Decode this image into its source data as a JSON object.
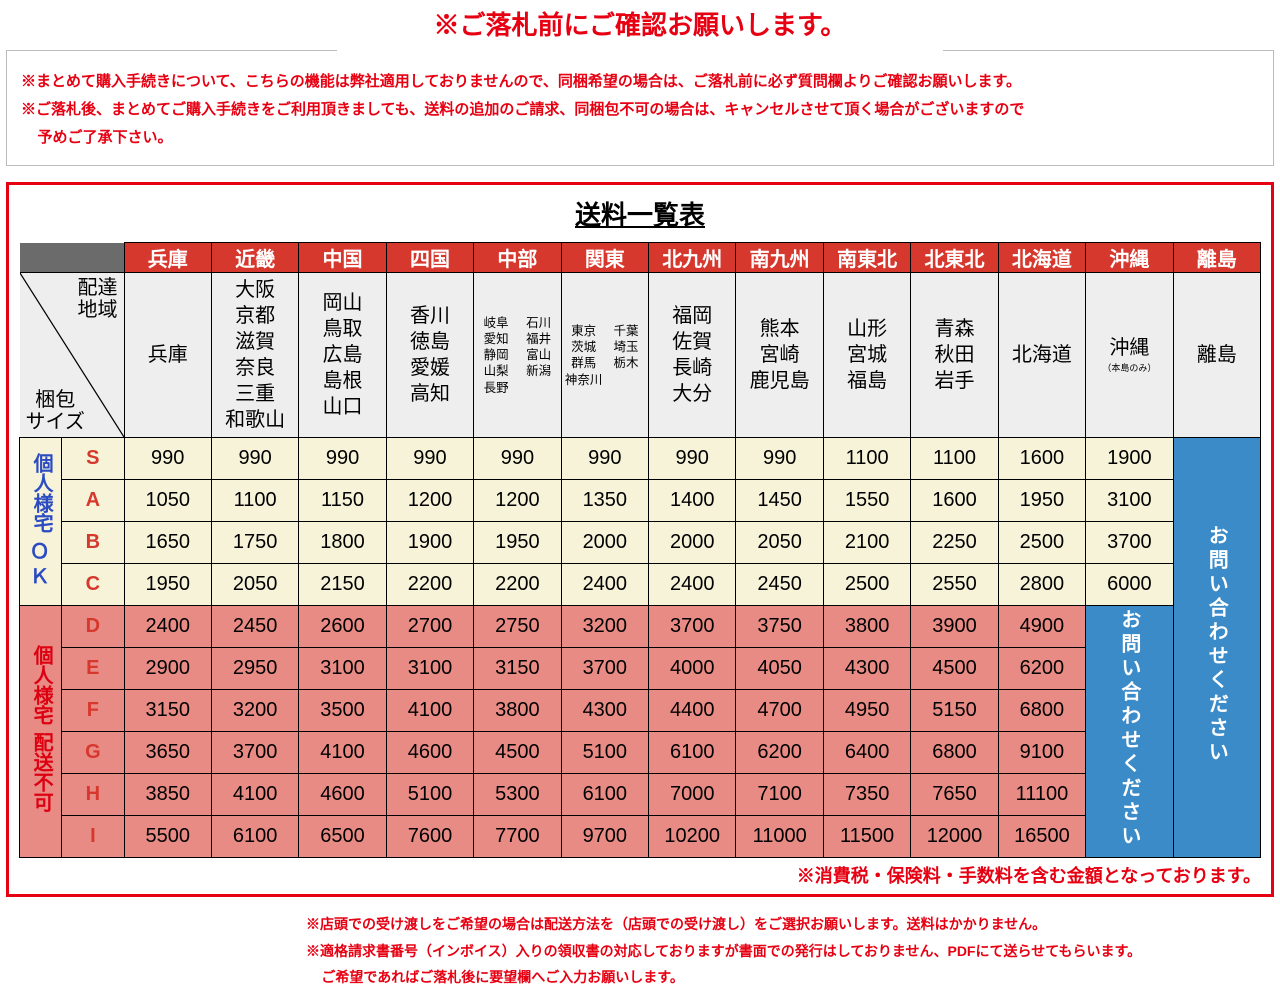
{
  "notice": {
    "title": "※ご落札前にご確認お願いします。",
    "line1": "※まとめて購入手続きについて、こちらの機能は弊社適用しておりませんので、同梱希望の場合は、ご落札前に必ず質問欄よりご確認お願いします。",
    "line2": "※ご落札後、まとめてご購入手続きをご利用頂きましても、送料の追加のご請求、同梱包不可の場合は、キャンセルさせて頂く場合がございますので",
    "line2b": "予めご了承下さい。"
  },
  "table_title": "送料一覧表",
  "diag": {
    "top": "配達\n地域",
    "bottom": "梱包\nサイズ"
  },
  "regions": [
    "兵庫",
    "近畿",
    "中国",
    "四国",
    "中部",
    "関東",
    "北九州",
    "南九州",
    "南東北",
    "北東北",
    "北海道",
    "沖縄",
    "離島"
  ],
  "prefs": {
    "r0": "兵庫",
    "r1": "大阪\n京都\n滋賀\n奈良\n三重\n和歌山",
    "r2": "岡山\n鳥取\n広島\n島根\n山口",
    "r3": "香川\n徳島\n愛媛\n高知",
    "r4a": "岐阜\n愛知\n静岡\n山梨\n長野",
    "r4b": "石川\n福井\n富山\n新潟",
    "r5a": "東京\n茨城\n群馬\n神奈川",
    "r5b": "千葉\n埼玉\n栃木",
    "r6": "福岡\n佐賀\n長崎\n大分",
    "r7": "熊本\n宮崎\n鹿児島",
    "r8": "山形\n宮城\n福島",
    "r9": "青森\n秋田\n岩手",
    "r10": "北海道",
    "r11": "沖縄",
    "r11_sub": "（本島のみ）",
    "r12": "離島"
  },
  "side": {
    "ok_v": "個人様宅",
    "ok_h": "ＯＫ",
    "ng_v1": "個人様宅",
    "ng_v2": "配送不可"
  },
  "sizes_ok": [
    "S",
    "A",
    "B",
    "C"
  ],
  "sizes_ng": [
    "D",
    "E",
    "F",
    "G",
    "H",
    "I"
  ],
  "rates_ok": {
    "S": [
      990,
      990,
      990,
      990,
      990,
      990,
      990,
      990,
      1100,
      1100,
      1600,
      1900
    ],
    "A": [
      1050,
      1100,
      1150,
      1200,
      1200,
      1350,
      1400,
      1450,
      1550,
      1600,
      1950,
      3100
    ],
    "B": [
      1650,
      1750,
      1800,
      1900,
      1950,
      2000,
      2000,
      2050,
      2100,
      2250,
      2500,
      3700
    ],
    "C": [
      1950,
      2050,
      2150,
      2200,
      2200,
      2400,
      2400,
      2450,
      2500,
      2550,
      2800,
      6000
    ]
  },
  "rates_ng": {
    "D": [
      2400,
      2450,
      2600,
      2700,
      2750,
      3200,
      3700,
      3750,
      3800,
      3900,
      4900
    ],
    "E": [
      2900,
      2950,
      3100,
      3100,
      3150,
      3700,
      4000,
      4050,
      4300,
      4500,
      6200
    ],
    "F": [
      3150,
      3200,
      3500,
      4100,
      3800,
      4300,
      4400,
      4700,
      4950,
      5150,
      6800
    ],
    "G": [
      3650,
      3700,
      4100,
      4600,
      4500,
      5100,
      6100,
      6200,
      6400,
      6800,
      9100
    ],
    "H": [
      3850,
      4100,
      4600,
      5100,
      5300,
      6100,
      7000,
      7100,
      7350,
      7650,
      11100
    ],
    "I": [
      5500,
      6100,
      6500,
      7600,
      7700,
      9700,
      10200,
      11000,
      11500,
      12000,
      16500
    ]
  },
  "contact_text": "お問い合わせください",
  "footnote": "※消費税・保険料・手数料を含む金額となっております。",
  "bottom": {
    "b1": "※店頭での受け渡しをご希望の場合は配送方法を（店頭での受け渡し）をご選択お願いします。送料はかかりません。",
    "b2": "※適格請求書番号（インボイス）入りの領収書の対応しておりますが書面での発行はしておりません、PDFにて送らせてもらいます。",
    "b3": "ご希望であればご落札後に要望欄へご入力お願いします。"
  },
  "colors": {
    "accent": "#e60012",
    "header_bg": "#d7382e",
    "ok_bg": "#f6f3d9",
    "ng_bg": "#e98b85",
    "contact_bg": "#3a8bc8",
    "gray_bg": "#eeeeee",
    "dark_bg": "#6b6b6b"
  }
}
